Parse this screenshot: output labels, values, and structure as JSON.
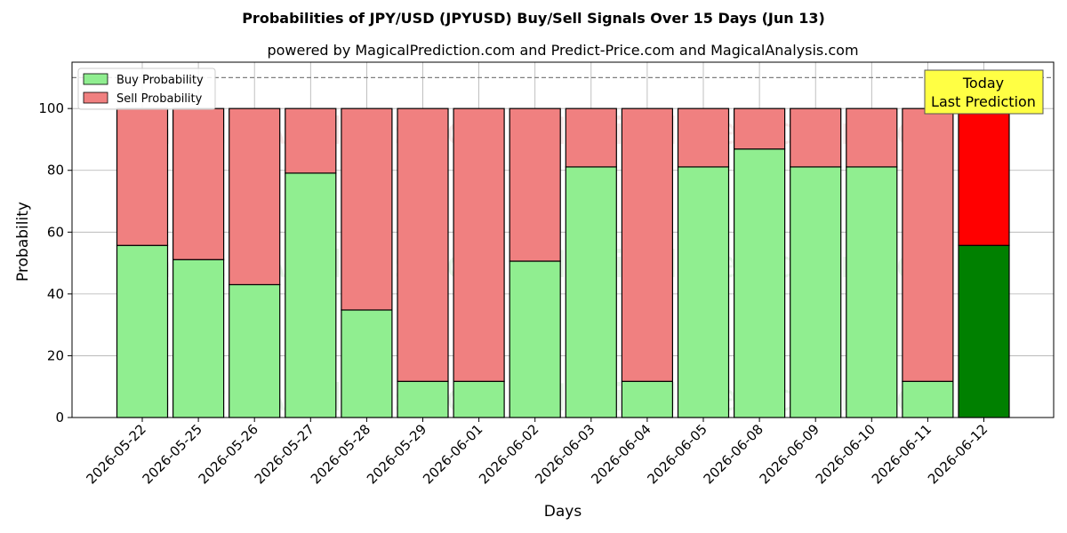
{
  "chart_data": {
    "type": "bar",
    "title": "Probabilities of JPY/USD (JPYUSD) Buy/Sell Signals Over 15 Days (Jun 13)",
    "subtitle": "powered by MagicalPrediction.com and Predict-Price.com and MagicalAnalysis.com",
    "xlabel": "Days",
    "ylabel": "Probability",
    "ylim": [
      0,
      115
    ],
    "yticks": [
      0,
      20,
      40,
      60,
      80,
      100
    ],
    "reference_line": 110,
    "grid": true,
    "legend_position": "top-left",
    "categories": [
      "2026-05-22",
      "2026-05-25",
      "2026-05-26",
      "2026-05-27",
      "2026-05-28",
      "2026-05-29",
      "2026-06-01",
      "2026-06-02",
      "2026-06-03",
      "2026-06-04",
      "2026-06-05",
      "2026-06-08",
      "2026-06-09",
      "2026-06-10",
      "2026-06-11",
      "2026-06-12"
    ],
    "series": [
      {
        "name": "Buy Probability",
        "color": "#90ee90",
        "values": [
          55.7,
          51.1,
          43.0,
          79.1,
          34.8,
          11.7,
          11.7,
          50.6,
          81.1,
          11.7,
          81.1,
          86.9,
          81.1,
          81.1,
          11.7,
          55.7
        ]
      },
      {
        "name": "Sell Probability",
        "color": "#f08080",
        "values": [
          44.3,
          48.9,
          57.0,
          20.9,
          65.2,
          88.3,
          88.3,
          49.4,
          18.9,
          88.3,
          18.9,
          13.1,
          18.9,
          18.9,
          88.3,
          44.3
        ]
      }
    ],
    "highlight": {
      "buy_color": "#008000",
      "sell_color": "#ff0000"
    },
    "annotation": {
      "line1": "Today",
      "line2": "Last Prediction"
    },
    "watermarks": [
      "MagicalAnalysis.com",
      "MagicalPrediction.com"
    ]
  }
}
